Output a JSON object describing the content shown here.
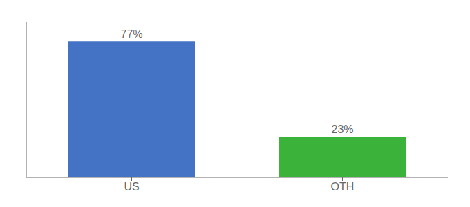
{
  "chart_data": {
    "type": "bar",
    "categories": [
      "US",
      "OTH"
    ],
    "values": [
      77,
      23
    ],
    "value_labels": [
      "77%",
      "23%"
    ],
    "colors": [
      "#4472c4",
      "#3bb33b"
    ],
    "ylim": [
      0,
      88
    ],
    "data_labels": true,
    "tick_labels": "x"
  }
}
